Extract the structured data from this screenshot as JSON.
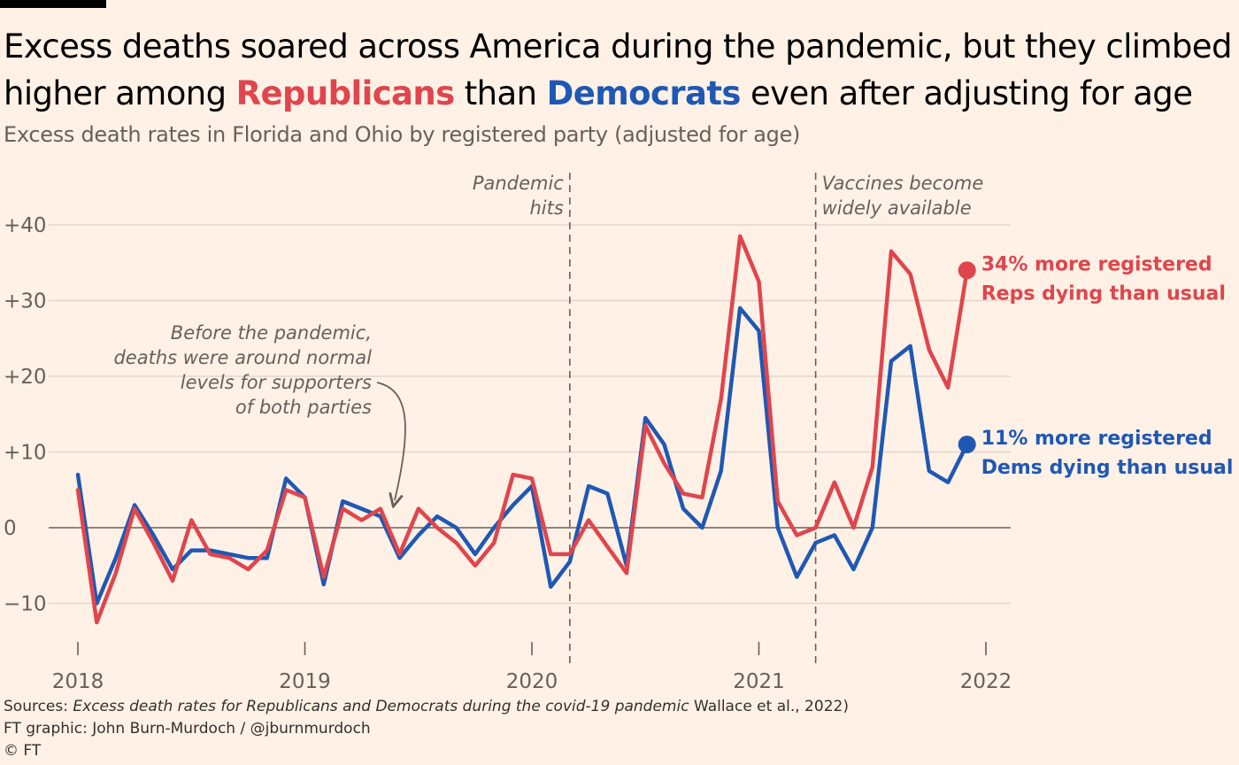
{
  "title": {
    "part1": "Excess deaths soared across America during the pandemic, but they climbed higher among ",
    "republicans": "Republicans",
    "part2": " than ",
    "democrats": "Democrats",
    "part3": " even after adjusting for age"
  },
  "subtitle": "Excess death rates in Florida and Ohio by registered party (adjusted for age)",
  "colors": {
    "republicans": "#e0454d",
    "democrats": "#1f58b4",
    "background": "#fff1e5",
    "text": "#66605c"
  },
  "annotations": {
    "pandemic": {
      "x": 2020.167,
      "lines": [
        "Pandemic",
        "hits"
      ]
    },
    "vaccines": {
      "x": 2021.25,
      "lines": [
        "Vaccines become",
        "widely available"
      ]
    },
    "before": {
      "lines": [
        "Before the pandemic,",
        "deaths were around normal",
        "levels for supporters",
        "of both parties"
      ]
    }
  },
  "end_labels": {
    "rep": [
      "34% more registered",
      "Reps dying than usual"
    ],
    "dem": [
      "11% more registered",
      "Dems dying than usual"
    ]
  },
  "footer": {
    "sources_prefix": "Sources: ",
    "sources_title": "Excess death rates for Republicans and Democrats during the covid-19 pandemic",
    "sources_suffix": " Wallace et al., 2022)",
    "credit": "FT graphic: John Burn-Murdoch / @jburnmurdoch",
    "copyright": "© FT"
  },
  "chart_data": {
    "type": "line",
    "title": "Excess death rates in Florida and Ohio by registered party (adjusted for age)",
    "xlabel": "",
    "ylabel": "",
    "xlim": [
      2018,
      2022
    ],
    "ylim": [
      -13,
      44
    ],
    "x_ticks": [
      2018,
      2019,
      2020,
      2021,
      2022
    ],
    "x_tick_labels": [
      "2018",
      "2019",
      "2020",
      "2021",
      "2022"
    ],
    "y_ticks": [
      40,
      30,
      20,
      10,
      0,
      -10
    ],
    "y_tick_labels": [
      "+40",
      "+30",
      "+20",
      "+10",
      "0",
      "−10"
    ],
    "grid": true,
    "series": [
      {
        "name": "Democrats",
        "color": "#1f58b4",
        "label": "11% more registered Dems dying than usual",
        "points": [
          [
            2018.0,
            7
          ],
          [
            2018.083,
            -10
          ],
          [
            2018.167,
            -4
          ],
          [
            2018.25,
            3
          ],
          [
            2018.333,
            -1
          ],
          [
            2018.417,
            -5.5
          ],
          [
            2018.5,
            -3
          ],
          [
            2018.583,
            -3
          ],
          [
            2018.667,
            -3.5
          ],
          [
            2018.75,
            -4
          ],
          [
            2018.833,
            -4
          ],
          [
            2018.917,
            6.5
          ],
          [
            2019.0,
            4
          ],
          [
            2019.083,
            -7.5
          ],
          [
            2019.167,
            3.5
          ],
          [
            2019.25,
            2.5
          ],
          [
            2019.333,
            1.5
          ],
          [
            2019.417,
            -4
          ],
          [
            2019.5,
            -1
          ],
          [
            2019.583,
            1.5
          ],
          [
            2019.667,
            0
          ],
          [
            2019.75,
            -3.5
          ],
          [
            2019.833,
            0
          ],
          [
            2019.917,
            3
          ],
          [
            2020.0,
            5.5
          ],
          [
            2020.083,
            -7.8
          ],
          [
            2020.167,
            -4.5
          ],
          [
            2020.25,
            5.5
          ],
          [
            2020.333,
            4.5
          ],
          [
            2020.417,
            -5
          ],
          [
            2020.5,
            14.5
          ],
          [
            2020.583,
            11
          ],
          [
            2020.667,
            2.5
          ],
          [
            2020.75,
            0
          ],
          [
            2020.833,
            7.5
          ],
          [
            2020.917,
            29
          ],
          [
            2021.0,
            26
          ],
          [
            2021.083,
            0
          ],
          [
            2021.167,
            -6.5
          ],
          [
            2021.25,
            -2
          ],
          [
            2021.333,
            -1
          ],
          [
            2021.417,
            -5.5
          ],
          [
            2021.5,
            0
          ],
          [
            2021.583,
            22
          ],
          [
            2021.667,
            24
          ],
          [
            2021.75,
            7.5
          ],
          [
            2021.833,
            6
          ],
          [
            2021.917,
            11
          ]
        ]
      },
      {
        "name": "Republicans",
        "color": "#e0454d",
        "label": "34% more registered Reps dying than usual",
        "points": [
          [
            2018.0,
            5
          ],
          [
            2018.083,
            -12.5
          ],
          [
            2018.167,
            -6
          ],
          [
            2018.25,
            2.5
          ],
          [
            2018.333,
            -2
          ],
          [
            2018.417,
            -7
          ],
          [
            2018.5,
            1
          ],
          [
            2018.583,
            -3.5
          ],
          [
            2018.667,
            -4
          ],
          [
            2018.75,
            -5.5
          ],
          [
            2018.833,
            -3
          ],
          [
            2018.917,
            5
          ],
          [
            2019.0,
            4
          ],
          [
            2019.083,
            -6.5
          ],
          [
            2019.167,
            2.5
          ],
          [
            2019.25,
            1
          ],
          [
            2019.333,
            2.5
          ],
          [
            2019.417,
            -3.5
          ],
          [
            2019.5,
            2.5
          ],
          [
            2019.583,
            0
          ],
          [
            2019.667,
            -2
          ],
          [
            2019.75,
            -5
          ],
          [
            2019.833,
            -2
          ],
          [
            2019.917,
            7
          ],
          [
            2020.0,
            6.5
          ],
          [
            2020.083,
            -3.5
          ],
          [
            2020.167,
            -3.5
          ],
          [
            2020.25,
            1
          ],
          [
            2020.333,
            -2.5
          ],
          [
            2020.417,
            -6
          ],
          [
            2020.5,
            13.5
          ],
          [
            2020.583,
            8.5
          ],
          [
            2020.667,
            4.5
          ],
          [
            2020.75,
            4
          ],
          [
            2020.833,
            17
          ],
          [
            2020.917,
            38.5
          ],
          [
            2021.0,
            32.5
          ],
          [
            2021.083,
            3.5
          ],
          [
            2021.167,
            -1
          ],
          [
            2021.25,
            0
          ],
          [
            2021.333,
            6
          ],
          [
            2021.417,
            0
          ],
          [
            2021.5,
            8
          ],
          [
            2021.583,
            36.5
          ],
          [
            2021.667,
            33.5
          ],
          [
            2021.75,
            23.5
          ],
          [
            2021.833,
            18.5
          ],
          [
            2021.917,
            34
          ]
        ]
      }
    ]
  }
}
